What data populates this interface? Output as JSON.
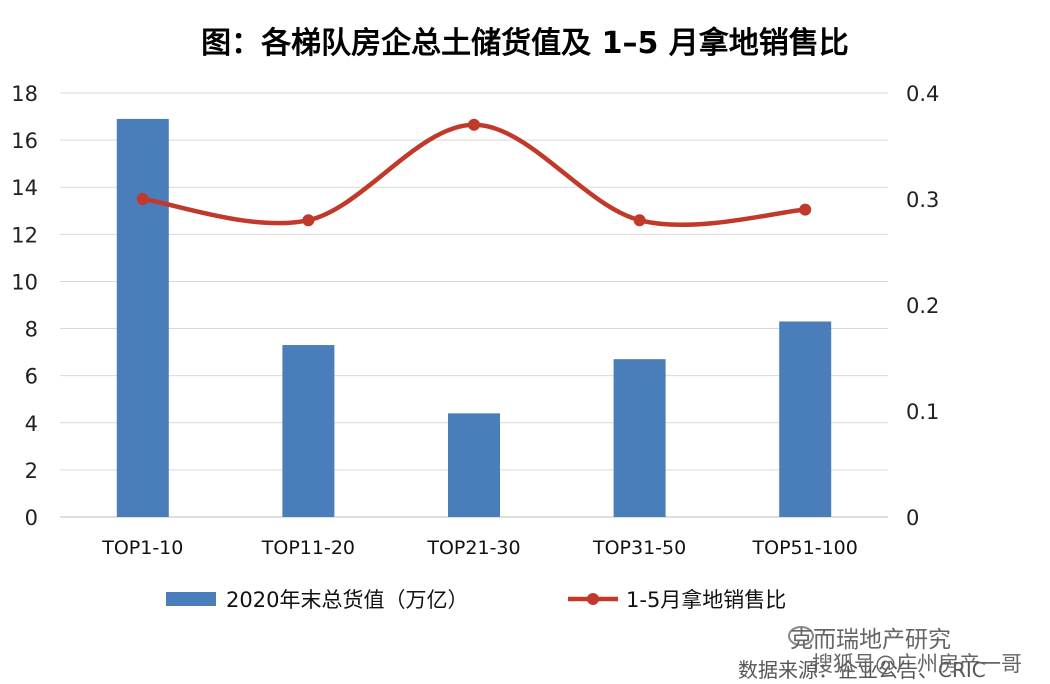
{
  "chart_data": {
    "type": "bar+line",
    "title": "图：各梯队房企总土储货值及 1–5 月拿地销售比",
    "categories": [
      "TOP1-10",
      "TOP11-20",
      "TOP21-30",
      "TOP31-50",
      "TOP51-100"
    ],
    "series": [
      {
        "name": "2020年末总货值（万亿）",
        "type": "bar",
        "axis": "left",
        "color": "#4a7ebb",
        "values": [
          16.9,
          7.3,
          4.4,
          6.7,
          8.3
        ]
      },
      {
        "name": "1-5月拿地销售比",
        "type": "line",
        "axis": "right",
        "color": "#c0392b",
        "values": [
          0.3,
          0.28,
          0.37,
          0.28,
          0.29
        ]
      }
    ],
    "left_axis": {
      "ylim": [
        0,
        18
      ],
      "ticks": [
        0,
        2,
        4,
        6,
        8,
        10,
        12,
        14,
        16,
        18
      ]
    },
    "right_axis": {
      "ylim": [
        0,
        0.4
      ],
      "ticks": [
        "0",
        "0.1",
        "0.2",
        "0.3",
        "0.4"
      ]
    },
    "grid": true,
    "legend_position": "bottom"
  },
  "watermark": {
    "main": "克而瑞地产研究",
    "sub": "搜狐号@广州房产一哥",
    "source": "数据来源：企业公告、CRIC"
  }
}
